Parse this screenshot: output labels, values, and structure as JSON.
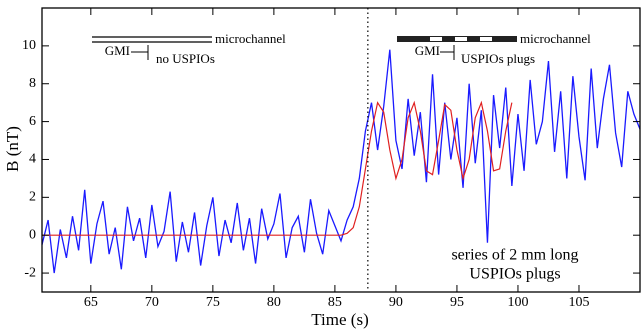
{
  "chart_data": {
    "type": "line",
    "x_label": "Time (s)",
    "y_label": "B (nT)",
    "xlim": [
      61,
      110
    ],
    "ylim": [
      -3,
      12
    ],
    "xticks": [
      65,
      70,
      75,
      80,
      85,
      90,
      95,
      100,
      105
    ],
    "yticks": [
      -2,
      0,
      2,
      4,
      6,
      8,
      10
    ],
    "vline": 87.7,
    "annotations": [
      "microchannel",
      "GMI",
      "no USPIOs",
      "microchannel",
      "GMI",
      "USPIOs plugs",
      "series of 2 mm long",
      "USPIOs plugs"
    ],
    "x": [
      61,
      61.5,
      62,
      62.5,
      63,
      63.5,
      64,
      64.5,
      65,
      65.5,
      66,
      66.5,
      67,
      67.5,
      68,
      68.5,
      69,
      69.5,
      70,
      70.5,
      71,
      71.5,
      72,
      72.5,
      73,
      73.5,
      74,
      74.5,
      75,
      75.5,
      76,
      76.5,
      77,
      77.5,
      78,
      78.5,
      79,
      79.5,
      80,
      80.5,
      81,
      81.5,
      82,
      82.5,
      83,
      83.5,
      84,
      84.5,
      85,
      85.5,
      86,
      86.5,
      87,
      87.5,
      88,
      88.5,
      89,
      89.5,
      90,
      90.5,
      91,
      91.5,
      92,
      92.5,
      93,
      93.5,
      94,
      94.5,
      95,
      95.5,
      96,
      96.5,
      97,
      97.5,
      98,
      98.5,
      99,
      99.5,
      100,
      100.5,
      101,
      101.5,
      102,
      102.5,
      103,
      103.5,
      104,
      104.5,
      105,
      105.5,
      106,
      106.5,
      107,
      107.5,
      108,
      108.5,
      109,
      109.5,
      110
    ],
    "series": [
      {
        "color": "#1a1aff",
        "values": [
          -0.5,
          0.8,
          -2.0,
          0.3,
          -1.2,
          1.0,
          -0.8,
          2.4,
          -1.5,
          0.6,
          1.8,
          -1.0,
          0.4,
          -1.8,
          1.5,
          -0.3,
          0.9,
          -1.2,
          1.6,
          -0.6,
          0.2,
          2.3,
          -1.4,
          0.7,
          -0.9,
          1.2,
          -1.6,
          0.5,
          2.0,
          -1.1,
          0.8,
          -0.4,
          1.7,
          -0.8,
          0.9,
          -1.5,
          1.4,
          -0.2,
          0.6,
          2.2,
          -1.2,
          0.4,
          1.0,
          -0.9,
          1.9,
          0.1,
          -1.0,
          1.3,
          0.5,
          -0.3,
          0.8,
          1.5,
          3.0,
          5.5,
          7.0,
          4.5,
          6.8,
          9.8,
          5.0,
          3.5,
          7.2,
          4.2,
          6.5,
          2.8,
          8.5,
          3.2,
          7.0,
          4.0,
          6.2,
          2.5,
          8.0,
          3.8,
          6.6,
          -0.4,
          7.4,
          4.6,
          7.8,
          2.6,
          6.4,
          3.4,
          8.2,
          4.8,
          6.0,
          9.2,
          4.4,
          7.6,
          3.0,
          8.4,
          5.2,
          2.9,
          8.8,
          4.6,
          7.2,
          9.0,
          5.4,
          3.6,
          7.6,
          6.4,
          5.6
        ]
      },
      {
        "color": "#e02020",
        "values": [
          0,
          0,
          0,
          0,
          0,
          0,
          0,
          0,
          0,
          0,
          0,
          0,
          0,
          0,
          0,
          0,
          0,
          0,
          0,
          0,
          0,
          0,
          0,
          0,
          0,
          0,
          0,
          0,
          0,
          0,
          0,
          0,
          0,
          0,
          0,
          0,
          0,
          0,
          0,
          0,
          0,
          0,
          0,
          0,
          0,
          0,
          0,
          0,
          0,
          0,
          0.1,
          0.4,
          1.5,
          3.5,
          5.5,
          7.0,
          6.5,
          4.5,
          3.0,
          4.0,
          6.2,
          7.0,
          5.5,
          3.4,
          3.2,
          5.0,
          6.9,
          6.6,
          4.5,
          3.0,
          4.0,
          6.2,
          7.0,
          5.5,
          3.4,
          3.5,
          5.5,
          7.0,
          null,
          null,
          null,
          null,
          null,
          null,
          null,
          null,
          null,
          null,
          null,
          null,
          null,
          null,
          null,
          null,
          null,
          null,
          null,
          null,
          null
        ]
      }
    ]
  }
}
